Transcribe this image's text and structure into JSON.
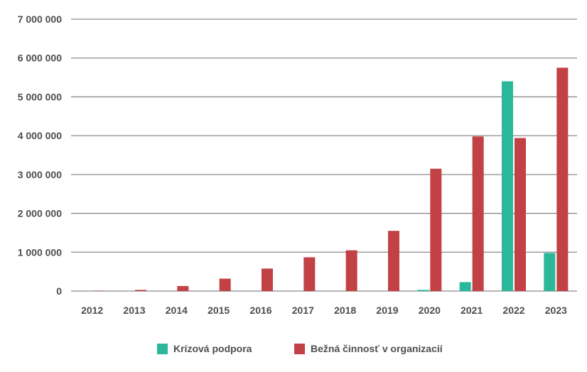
{
  "chart_data": {
    "type": "bar",
    "categories": [
      "2012",
      "2013",
      "2014",
      "2015",
      "2016",
      "2017",
      "2018",
      "2019",
      "2020",
      "2021",
      "2022",
      "2023"
    ],
    "series": [
      {
        "name": "Krízová podpora",
        "color": "#2bb89a",
        "values": [
          0,
          0,
          0,
          0,
          0,
          0,
          0,
          0,
          30000,
          230000,
          5400000,
          980000
        ]
      },
      {
        "name": "Bežná činnosť v organizacií",
        "color": "#c24145",
        "values": [
          10000,
          30000,
          130000,
          320000,
          580000,
          870000,
          1050000,
          1550000,
          3150000,
          3980000,
          3940000,
          5750000
        ]
      }
    ],
    "ylim": [
      0,
      7000000
    ],
    "yticks": [
      "0",
      "1 000 000",
      "2 000 000",
      "3 000 000",
      "4 000 000",
      "5 000 000",
      "6 000 000",
      "7 000 000"
    ],
    "grid": true,
    "legend_position": "bottom-center"
  }
}
